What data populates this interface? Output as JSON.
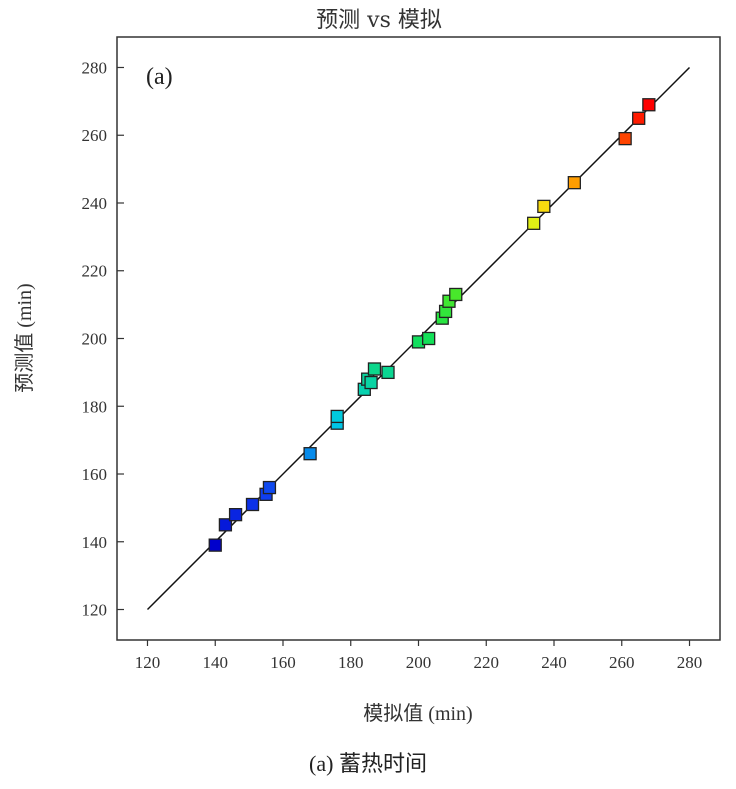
{
  "chart_data": {
    "type": "scatter",
    "title": "预测 vs 模拟",
    "xlabel": "模拟值 (min)",
    "ylabel": "预测值 (min)",
    "annotation": "(a)",
    "caption": "(a)  蓄热时间",
    "xlim": [
      111,
      289
    ],
    "ylim": [
      111,
      289
    ],
    "xticks": [
      120,
      140,
      160,
      180,
      200,
      220,
      240,
      260,
      280
    ],
    "yticks": [
      120,
      140,
      160,
      180,
      200,
      220,
      240,
      260,
      280
    ],
    "grid": false,
    "legend": "none",
    "reference_line": {
      "x": [
        120,
        280
      ],
      "y": [
        120,
        280
      ]
    },
    "color_low": "#0000cc",
    "color_high": "#ff0000",
    "points": [
      {
        "x": 140,
        "y": 139
      },
      {
        "x": 143,
        "y": 145
      },
      {
        "x": 146,
        "y": 148
      },
      {
        "x": 151,
        "y": 151
      },
      {
        "x": 155,
        "y": 154
      },
      {
        "x": 156,
        "y": 156
      },
      {
        "x": 168,
        "y": 166
      },
      {
        "x": 176,
        "y": 175
      },
      {
        "x": 176,
        "y": 177
      },
      {
        "x": 184,
        "y": 185
      },
      {
        "x": 185,
        "y": 188
      },
      {
        "x": 186,
        "y": 187
      },
      {
        "x": 187,
        "y": 191
      },
      {
        "x": 191,
        "y": 190
      },
      {
        "x": 200,
        "y": 199
      },
      {
        "x": 203,
        "y": 200
      },
      {
        "x": 207,
        "y": 206
      },
      {
        "x": 208,
        "y": 208
      },
      {
        "x": 209,
        "y": 211
      },
      {
        "x": 211,
        "y": 213
      },
      {
        "x": 234,
        "y": 234
      },
      {
        "x": 237,
        "y": 239
      },
      {
        "x": 246,
        "y": 246
      },
      {
        "x": 261,
        "y": 259
      },
      {
        "x": 265,
        "y": 265
      },
      {
        "x": 268,
        "y": 269
      }
    ]
  }
}
